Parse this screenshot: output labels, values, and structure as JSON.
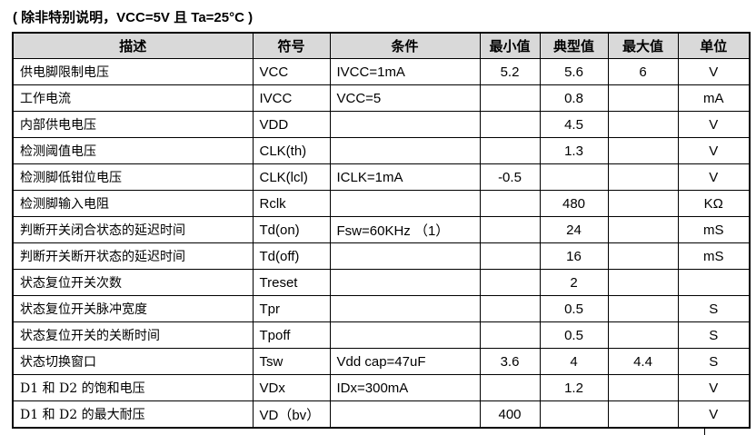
{
  "title": "( 除非特别说明，VCC=5V 且 Ta=25°C )",
  "table": {
    "header": [
      "描述",
      "符号",
      "条件",
      "最小值",
      "典型值",
      "最大值",
      "单位"
    ],
    "rows": [
      [
        "供电脚限制电压",
        "VCC",
        "IVCC=1mA",
        "5.2",
        "5.6",
        "6",
        "V"
      ],
      [
        "工作电流",
        "IVCC",
        "VCC=5",
        null,
        "0.8",
        null,
        "mA"
      ],
      [
        "内部供电电压",
        "VDD",
        null,
        null,
        "4.5",
        null,
        "V"
      ],
      [
        "检测阈值电压",
        "CLK(th)",
        null,
        null,
        "1.3",
        null,
        "V"
      ],
      [
        "检测脚低钳位电压",
        "CLK(lcl)",
        "ICLK=1mA",
        "-0.5",
        null,
        null,
        "V"
      ],
      [
        "检测脚输入电阻",
        "Rclk",
        null,
        null,
        "480",
        null,
        "KΩ"
      ],
      [
        "判断开关闭合状态的延迟时间",
        "Td(on)",
        "Fsw=60KHz （1）",
        null,
        "24",
        null,
        "mS"
      ],
      [
        "判断开关断开状态的延迟时间",
        "Td(off)",
        null,
        null,
        "16",
        null,
        "mS"
      ],
      [
        "状态复位开关次数",
        "Treset",
        null,
        null,
        "2",
        null,
        null
      ],
      [
        "状态复位开关脉冲宽度",
        "Tpr",
        null,
        null,
        "0.5",
        null,
        "S"
      ],
      [
        "状态复位开关的关断时间",
        "Tpoff",
        null,
        null,
        "0.5",
        null,
        "S"
      ],
      [
        "状态切换窗口",
        "Tsw",
        "Vdd cap=47uF",
        "3.6",
        "4",
        "4.4",
        "S"
      ],
      [
        "D1 和 D2 的饱和电压",
        "VDx",
        "IDx=300mA",
        null,
        "1.2",
        null,
        "V"
      ],
      [
        "D1 和 D2 的最大耐压",
        "VD（bv）",
        null,
        "400",
        null,
        null,
        "V"
      ]
    ]
  }
}
